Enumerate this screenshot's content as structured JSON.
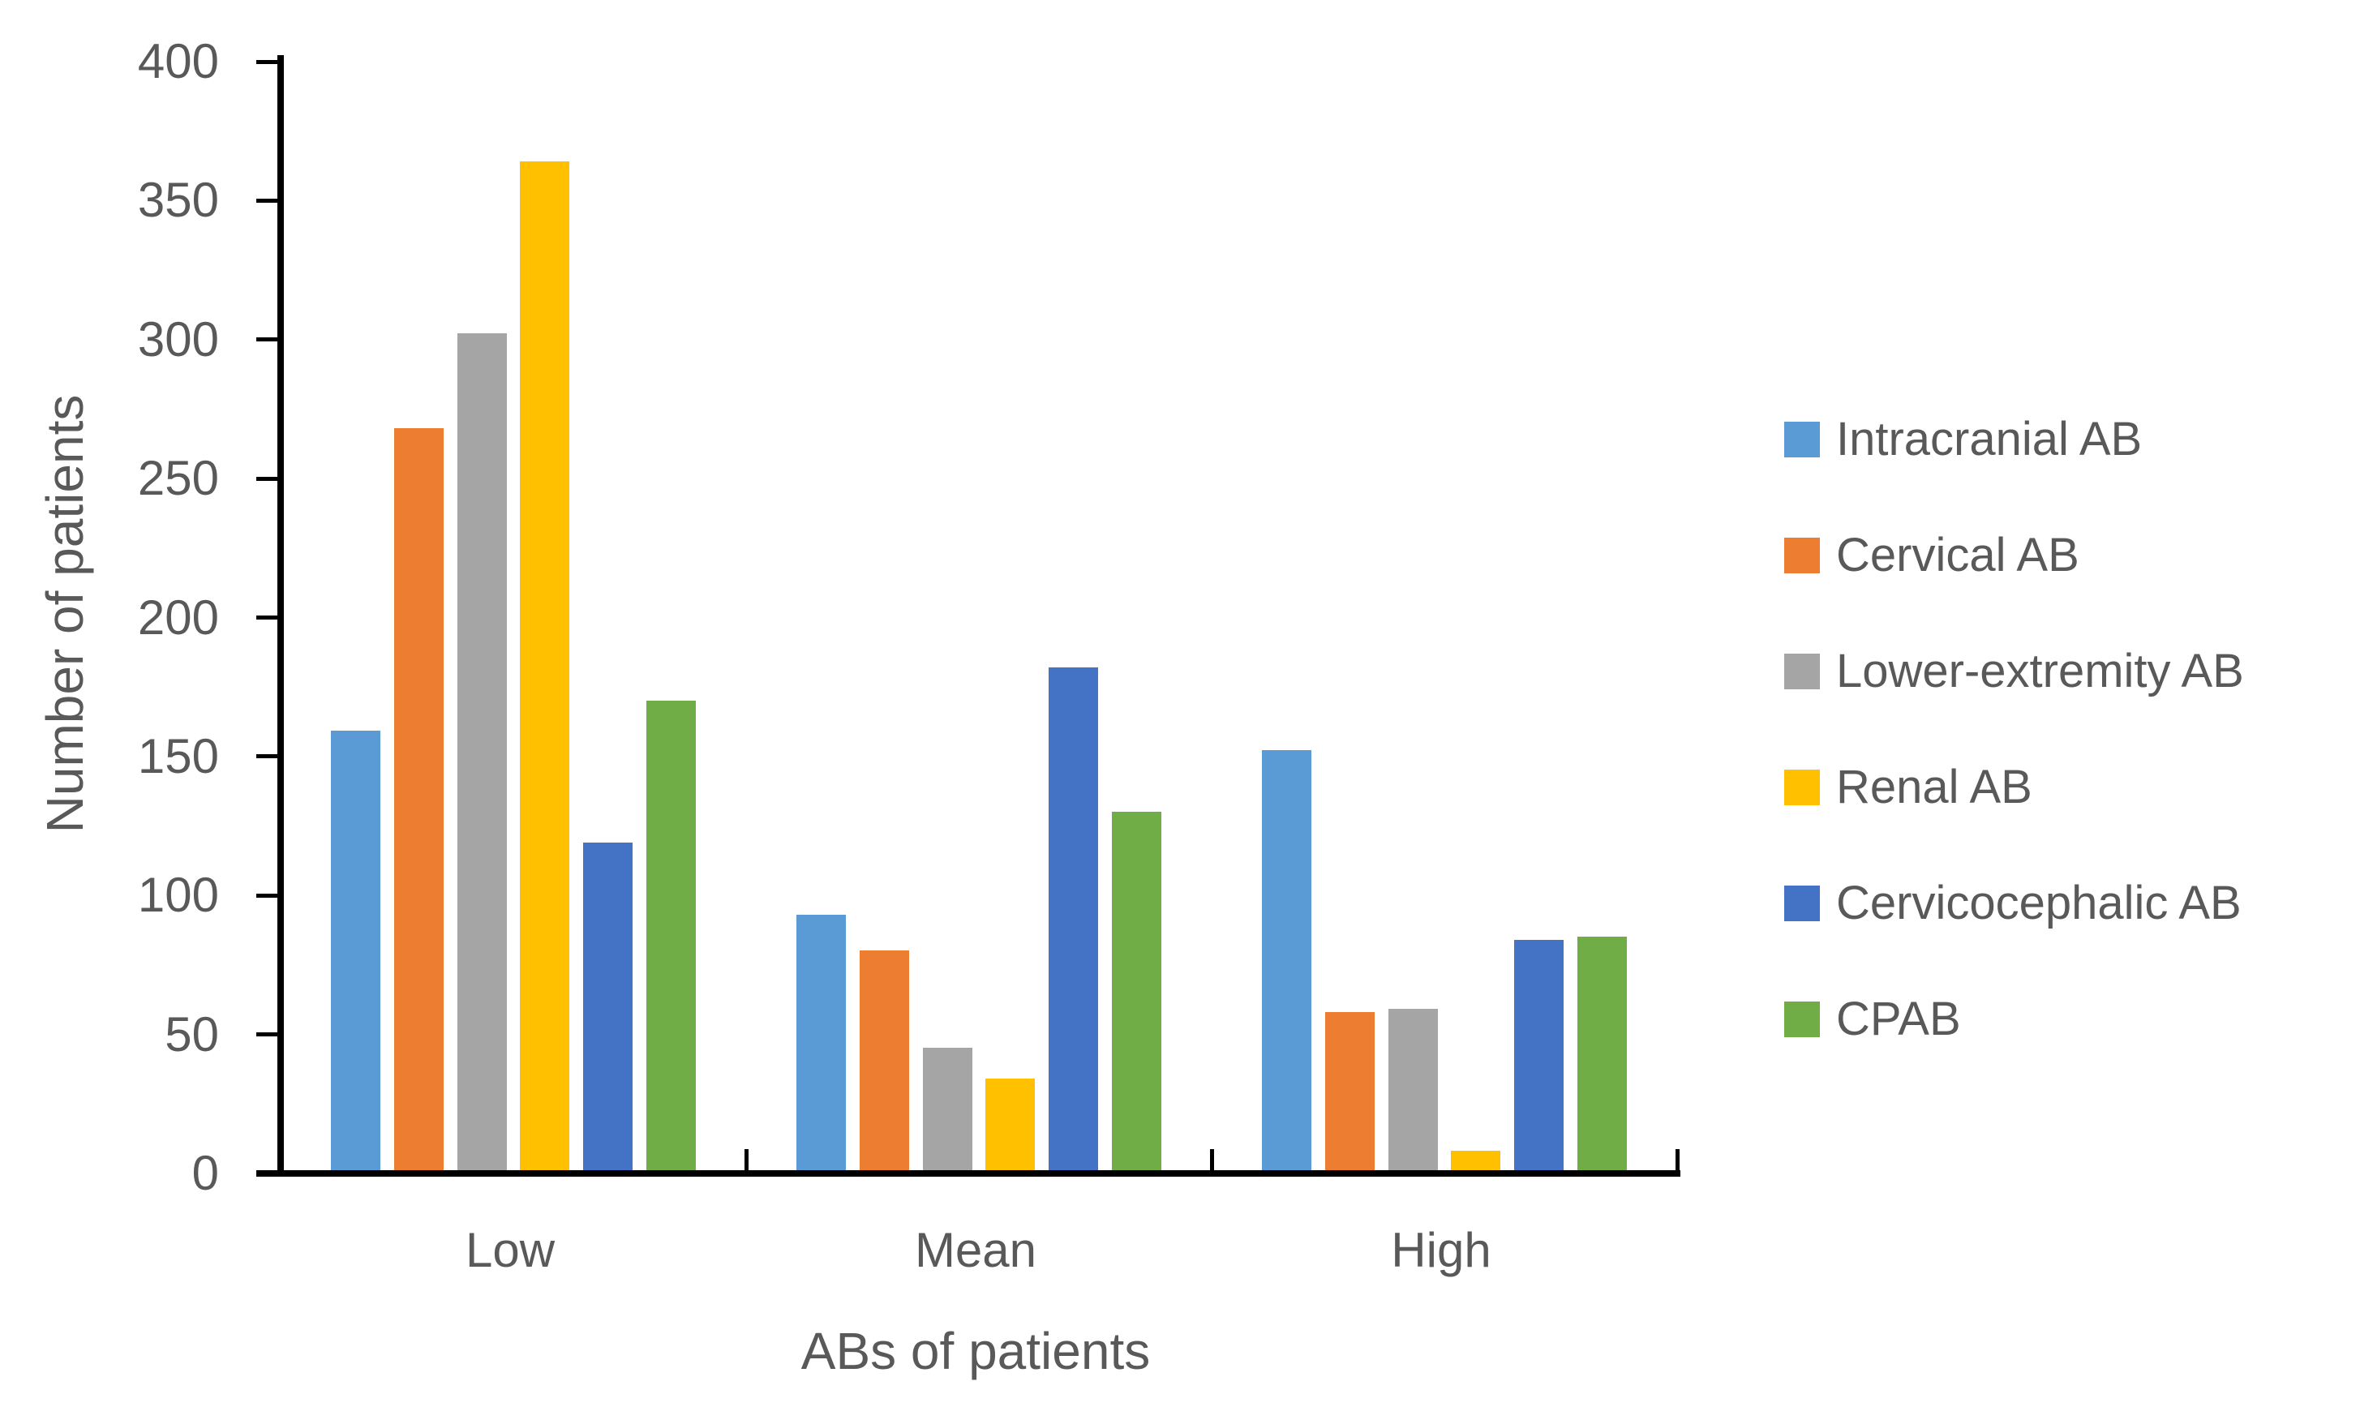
{
  "chart_data": {
    "type": "bar",
    "title": "",
    "categories": [
      "Low",
      "Mean",
      "High"
    ],
    "series": [
      {
        "name": "Intracranial AB",
        "color": "#5B9BD5",
        "values": [
          158,
          92,
          151
        ]
      },
      {
        "name": "Cervical AB",
        "color": "#ED7D31",
        "values": [
          267,
          79,
          57
        ]
      },
      {
        "name": "Lower-extremity AB",
        "color": "#A5A5A5",
        "values": [
          301,
          44,
          58
        ]
      },
      {
        "name": "Renal AB",
        "color": "#FFC000",
        "values": [
          363,
          33,
          7
        ]
      },
      {
        "name": "Cervicocephalic AB",
        "color": "#4472C4",
        "values": [
          118,
          181,
          83
        ]
      },
      {
        "name": "CPAB",
        "color": "#70AD47",
        "values": [
          169,
          129,
          84
        ]
      }
    ],
    "xlabel": "ABs of patients",
    "ylabel": "Number of patients",
    "ylim": [
      0,
      400
    ],
    "ytick_step": 50,
    "grid": false,
    "legend_position": "right",
    "axis_color": "#000000",
    "text_color": "#595959"
  }
}
